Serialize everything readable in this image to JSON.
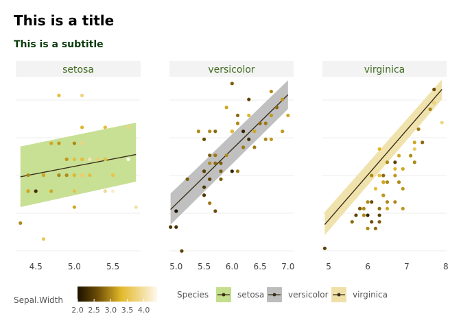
{
  "title": "This is a title",
  "subtitle": "This is a subtitle",
  "colors": {
    "setosa": "#c5de8e",
    "versicolor": "#bdbdbd",
    "virginica": "#efe0a8",
    "line": "#3a2e1a",
    "gradient": [
      "#1b1100",
      "#6b4c05",
      "#e3b92a",
      "#f0d88c",
      "#fff8ee"
    ]
  },
  "chart_data": {
    "type": "scatter",
    "title": "This is a title",
    "subtitle": "This is a subtitle",
    "xlabel": "",
    "ylabel": "",
    "color_variable": "Sepal.Width",
    "color_range": [
      2.0,
      4.4
    ],
    "color_ticks": [
      "2.0",
      "2.5",
      "3.0",
      "3.5",
      "4.0"
    ],
    "legend_title": "Species",
    "legend_entries": [
      "setosa",
      "versicolor",
      "virginica"
    ],
    "facets": [
      {
        "name": "setosa",
        "xlim": [
          4.24,
          5.86
        ],
        "ylim": [
          0.9,
          2.0
        ],
        "x_ticks": [
          "4.5",
          "5.0",
          "5.5"
        ],
        "x_tick_values": [
          4.5,
          5.0,
          5.5
        ],
        "fit": {
          "x": [
            4.3,
            5.8
          ],
          "y": [
            1.39,
            1.53
          ],
          "ci_low": [
            1.2,
            1.36
          ],
          "ci_high": [
            1.58,
            1.73
          ]
        },
        "points": [
          [
            4.3,
            1.1,
            3.0
          ],
          [
            4.4,
            1.4,
            3.0
          ],
          [
            4.4,
            1.3,
            3.0
          ],
          [
            4.4,
            1.3,
            3.2
          ],
          [
            4.5,
            1.3,
            2.3
          ],
          [
            4.6,
            1.4,
            3.1
          ],
          [
            4.6,
            1.4,
            3.4
          ],
          [
            4.6,
            1.0,
            3.6
          ],
          [
            4.6,
            1.4,
            3.2
          ],
          [
            4.7,
            1.3,
            3.2
          ],
          [
            4.7,
            1.6,
            3.2
          ],
          [
            4.8,
            1.4,
            3.0
          ],
          [
            4.8,
            1.4,
            3.0
          ],
          [
            4.8,
            1.6,
            3.4
          ],
          [
            4.8,
            1.9,
            3.4
          ],
          [
            4.8,
            1.6,
            3.1
          ],
          [
            4.9,
            1.4,
            3.0
          ],
          [
            4.9,
            1.5,
            3.1
          ],
          [
            4.9,
            1.5,
            3.6
          ],
          [
            4.9,
            1.5,
            3.1
          ],
          [
            5.0,
            1.4,
            3.6
          ],
          [
            5.0,
            1.5,
            3.4
          ],
          [
            5.0,
            1.2,
            3.2
          ],
          [
            5.0,
            1.6,
            3.5
          ],
          [
            5.0,
            1.6,
            3.5
          ],
          [
            5.0,
            1.3,
            3.5
          ],
          [
            5.0,
            1.4,
            3.3
          ],
          [
            5.0,
            1.6,
            3.0
          ],
          [
            5.1,
            1.4,
            3.5
          ],
          [
            5.1,
            1.5,
            3.8
          ],
          [
            5.1,
            1.5,
            3.5
          ],
          [
            5.1,
            1.7,
            3.3
          ],
          [
            5.1,
            1.9,
            3.8
          ],
          [
            5.1,
            1.6,
            3.8
          ],
          [
            5.1,
            1.5,
            3.4
          ],
          [
            5.1,
            1.4,
            3.7
          ],
          [
            5.2,
            1.5,
            3.5
          ],
          [
            5.2,
            1.4,
            3.4
          ],
          [
            5.2,
            1.5,
            4.1
          ],
          [
            5.3,
            1.5,
            3.7
          ],
          [
            5.4,
            1.7,
            3.9
          ],
          [
            5.4,
            1.5,
            3.7
          ],
          [
            5.4,
            1.7,
            3.4
          ],
          [
            5.4,
            1.5,
            3.4
          ],
          [
            5.4,
            1.3,
            3.9
          ],
          [
            5.5,
            1.4,
            3.5
          ],
          [
            5.5,
            1.3,
            4.2
          ],
          [
            5.7,
            1.5,
            4.4
          ],
          [
            5.7,
            1.7,
            3.8
          ],
          [
            5.8,
            1.2,
            4.0
          ]
        ]
      },
      {
        "name": "versicolor",
        "xlim": [
          4.88,
          7.1
        ],
        "ylim": [
          2.95,
          5.15
        ],
        "x_ticks": [
          "5.0",
          "5.5",
          "6.0",
          "6.5",
          "7.0"
        ],
        "x_tick_values": [
          5.0,
          5.5,
          6.0,
          6.5,
          7.0
        ],
        "fit": {
          "x": [
            4.9,
            7.0
          ],
          "y": [
            3.52,
            4.96
          ],
          "ci_low": [
            3.33,
            4.78
          ],
          "ci_high": [
            3.72,
            5.14
          ]
        },
        "points": [
          [
            4.9,
            3.3,
            2.4
          ],
          [
            5.0,
            3.5,
            2.0
          ],
          [
            5.0,
            3.3,
            2.3
          ],
          [
            5.1,
            3.0,
            2.5
          ],
          [
            5.2,
            3.9,
            2.7
          ],
          [
            5.4,
            4.5,
            3.0
          ],
          [
            5.5,
            4.0,
            2.3
          ],
          [
            5.5,
            3.8,
            2.4
          ],
          [
            5.5,
            3.7,
            2.4
          ],
          [
            5.5,
            4.0,
            2.5
          ],
          [
            5.5,
            4.4,
            2.6
          ],
          [
            5.6,
            4.5,
            3.0
          ],
          [
            5.6,
            3.9,
            2.5
          ],
          [
            5.6,
            4.1,
            3.0
          ],
          [
            5.6,
            4.2,
            2.7
          ],
          [
            5.6,
            3.6,
            2.9
          ],
          [
            5.7,
            4.5,
            2.8
          ],
          [
            5.7,
            3.5,
            2.6
          ],
          [
            5.7,
            4.2,
            3.0
          ],
          [
            5.7,
            4.2,
            2.9
          ],
          [
            5.7,
            4.1,
            2.8
          ],
          [
            5.8,
            4.1,
            2.7
          ],
          [
            5.8,
            4.0,
            2.7
          ],
          [
            5.8,
            3.9,
            2.7
          ],
          [
            5.9,
            4.8,
            3.2
          ],
          [
            5.9,
            4.2,
            3.0
          ],
          [
            6.0,
            4.5,
            2.2
          ],
          [
            6.0,
            4.0,
            2.2
          ],
          [
            6.0,
            4.5,
            3.4
          ],
          [
            6.0,
            5.1,
            2.7
          ],
          [
            6.1,
            4.7,
            2.8
          ],
          [
            6.1,
            4.0,
            2.9
          ],
          [
            6.2,
            4.5,
            2.2
          ],
          [
            6.2,
            4.3,
            2.9
          ],
          [
            6.3,
            4.7,
            3.3
          ],
          [
            6.3,
            4.9,
            2.5
          ],
          [
            6.3,
            4.4,
            2.3
          ],
          [
            6.4,
            4.5,
            3.2
          ],
          [
            6.4,
            4.3,
            2.9
          ],
          [
            6.5,
            4.6,
            2.8
          ],
          [
            6.6,
            4.6,
            2.9
          ],
          [
            6.6,
            4.4,
            3.0
          ],
          [
            6.7,
            4.7,
            3.1
          ],
          [
            6.7,
            4.4,
            3.1
          ],
          [
            6.7,
            5.0,
            3.0
          ],
          [
            6.8,
            4.8,
            2.8
          ],
          [
            6.9,
            4.9,
            3.1
          ],
          [
            6.9,
            4.5,
            3.1
          ],
          [
            7.0,
            4.7,
            3.2
          ],
          [
            6.1,
            4.6,
            3.0
          ]
        ]
      },
      {
        "name": "virginica",
        "xlim": [
          4.84,
          8.02
        ],
        "ylim": [
          4.4,
          7.05
        ],
        "x_ticks": [
          "5",
          "6",
          "7",
          "8"
        ],
        "x_tick_values": [
          5,
          6,
          7,
          8
        ],
        "fit": {
          "x": [
            4.9,
            7.9
          ],
          "y": [
            4.86,
            6.9
          ],
          "ci_low": [
            4.7,
            6.75
          ],
          "ci_high": [
            5.05,
            7.05
          ]
        },
        "points": [
          [
            4.9,
            4.5,
            2.5
          ],
          [
            5.6,
            4.9,
            2.8
          ],
          [
            5.7,
            5.0,
            2.5
          ],
          [
            5.8,
            5.1,
            2.7
          ],
          [
            5.8,
            5.1,
            2.8
          ],
          [
            5.8,
            5.1,
            2.7
          ],
          [
            5.9,
            5.0,
            3.0
          ],
          [
            5.9,
            5.1,
            3.0
          ],
          [
            6.0,
            5.0,
            2.2
          ],
          [
            6.0,
            4.8,
            3.0
          ],
          [
            6.0,
            5.2,
            3.0
          ],
          [
            6.1,
            4.9,
            2.6
          ],
          [
            6.1,
            5.6,
            3.0
          ],
          [
            6.1,
            5.2,
            2.6
          ],
          [
            6.2,
            4.8,
            2.8
          ],
          [
            6.2,
            5.4,
            3.4
          ],
          [
            6.3,
            6.0,
            3.3
          ],
          [
            6.3,
            5.1,
            2.8
          ],
          [
            6.3,
            5.6,
            3.4
          ],
          [
            6.3,
            4.9,
            2.7
          ],
          [
            6.3,
            5.0,
            2.5
          ],
          [
            6.4,
            5.3,
            2.7
          ],
          [
            6.4,
            5.5,
            3.2
          ],
          [
            6.4,
            5.6,
            2.8
          ],
          [
            6.4,
            5.3,
            3.1
          ],
          [
            6.4,
            5.5,
            3.2
          ],
          [
            6.5,
            5.8,
            3.0
          ],
          [
            6.5,
            5.5,
            3.0
          ],
          [
            6.5,
            5.1,
            3.2
          ],
          [
            6.5,
            5.2,
            3.0
          ],
          [
            6.7,
            5.8,
            2.5
          ],
          [
            6.7,
            5.7,
            3.3
          ],
          [
            6.7,
            5.6,
            3.1
          ],
          [
            6.7,
            5.2,
            3.0
          ],
          [
            6.8,
            5.5,
            3.0
          ],
          [
            6.8,
            5.9,
            3.2
          ],
          [
            6.9,
            5.4,
            3.1
          ],
          [
            6.9,
            5.1,
            3.1
          ],
          [
            6.9,
            5.7,
            3.2
          ],
          [
            7.1,
            5.9,
            3.0
          ],
          [
            7.2,
            6.0,
            3.6
          ],
          [
            7.2,
            5.8,
            3.0
          ],
          [
            7.2,
            6.1,
            3.2
          ],
          [
            7.3,
            6.3,
            2.9
          ],
          [
            7.4,
            6.1,
            2.8
          ],
          [
            7.6,
            6.6,
            3.0
          ],
          [
            7.7,
            6.7,
            2.8
          ],
          [
            7.7,
            6.9,
            2.6
          ],
          [
            7.7,
            6.7,
            3.8
          ],
          [
            7.9,
            6.4,
            3.8
          ]
        ]
      }
    ]
  }
}
